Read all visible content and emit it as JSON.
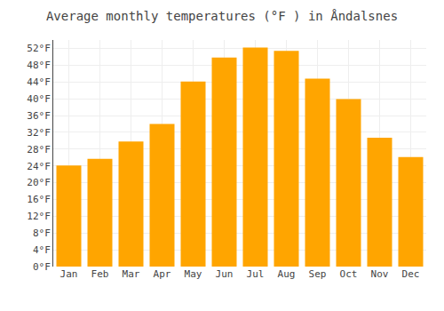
{
  "chart_data": {
    "type": "bar",
    "title": "Average monthly temperatures (°F ) in Åndalsnes",
    "categories": [
      "Jan",
      "Feb",
      "Mar",
      "Apr",
      "May",
      "Jun",
      "Jul",
      "Aug",
      "Sep",
      "Oct",
      "Nov",
      "Dec"
    ],
    "values": [
      24.1,
      25.7,
      29.8,
      34.0,
      44.1,
      49.8,
      52.2,
      51.4,
      44.8,
      39.9,
      30.7,
      26.1
    ],
    "color": "#FFA500",
    "ylim": [
      0,
      54
    ],
    "yticks": [
      {
        "value": 0,
        "label": "0°F"
      },
      {
        "value": 4,
        "label": "4°F"
      },
      {
        "value": 8,
        "label": "8°F"
      },
      {
        "value": 12,
        "label": "12°F"
      },
      {
        "value": 16,
        "label": "16°F"
      },
      {
        "value": 20,
        "label": "20°F"
      },
      {
        "value": 24,
        "label": "24°F"
      },
      {
        "value": 28,
        "label": "28°F"
      },
      {
        "value": 32,
        "label": "32°F"
      },
      {
        "value": 36,
        "label": "36°F"
      },
      {
        "value": 40,
        "label": "40°F"
      },
      {
        "value": 44,
        "label": "44°F"
      },
      {
        "value": 48,
        "label": "48°F"
      },
      {
        "value": 52,
        "label": "52°F"
      }
    ],
    "grid": true
  }
}
